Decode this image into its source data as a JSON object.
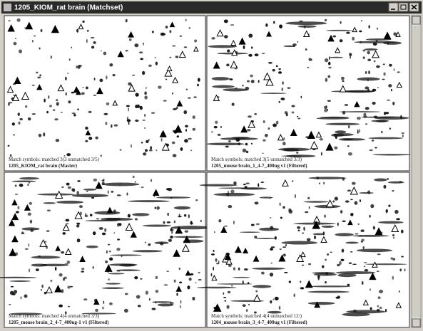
{
  "window": {
    "title": "1205_KIOM_rat brain (Matchset)"
  },
  "panels": [
    {
      "match_info": "Match symbols: matched 3(3 unmatched 3/5)",
      "label": "1205_KIOM_rat brain (Master)"
    },
    {
      "match_info": "Match symbols: matched 3(5 unmatched 3/3)",
      "label": "1205_mouse brain_1_4-7_400ug v1 (Filtered)"
    },
    {
      "match_info": "Match symbols: matched 4(4 unmatched 3/3)",
      "label": "1205_mouse brain_2_4-7_400ug-1 v1 (Filtered)"
    },
    {
      "match_info": "Match symbols: matched 4(4 unmatched 12/)",
      "label": "1204_mouse brain_3_4-7_400ug v1 (Filtered)"
    }
  ]
}
